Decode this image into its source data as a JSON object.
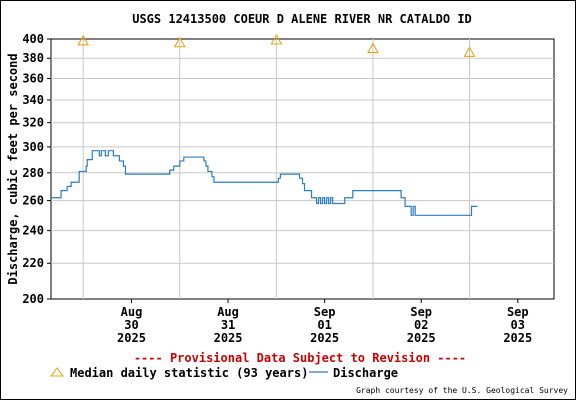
{
  "chart_data": {
    "type": "line",
    "title": "USGS 12413500 COEUR D ALENE RIVER NR CATALDO ID",
    "ylabel": "Discharge, cubic feet per second",
    "xlabel": "",
    "y_scale": "log",
    "ylim": [
      200,
      400
    ],
    "grid": true,
    "y_ticks": [
      200,
      220,
      240,
      260,
      280,
      300,
      320,
      340,
      360,
      380,
      400
    ],
    "x_ticks": [
      {
        "month": "Aug",
        "day": "30",
        "year": "2025"
      },
      {
        "month": "Aug",
        "day": "31",
        "year": "2025"
      },
      {
        "month": "Sep",
        "day": "01",
        "year": "2025"
      },
      {
        "month": "Sep",
        "day": "02",
        "year": "2025"
      },
      {
        "month": "Sep",
        "day": "03",
        "year": "2025"
      }
    ],
    "xlim": [
      "2025-08-29 16:00",
      "2025-09-03 21:00"
    ],
    "series": [
      {
        "name": "Discharge",
        "color": "#2b7dbf",
        "style": "line",
        "points": [
          [
            "2025-08-29 16:00",
            262
          ],
          [
            "2025-08-29 17:45",
            262
          ],
          [
            "2025-08-29 18:30",
            267
          ],
          [
            "2025-08-29 20:00",
            270
          ],
          [
            "2025-08-29 21:00",
            273
          ],
          [
            "2025-08-29 23:00",
            281
          ],
          [
            "2025-08-30 00:45",
            285
          ],
          [
            "2025-08-30 01:00",
            290
          ],
          [
            "2025-08-30 02:15",
            297
          ],
          [
            "2025-08-30 03:30",
            297
          ],
          [
            "2025-08-30 04:00",
            293
          ],
          [
            "2025-08-30 04:30",
            297
          ],
          [
            "2025-08-30 05:30",
            293
          ],
          [
            "2025-08-30 06:15",
            297
          ],
          [
            "2025-08-30 07:00",
            297
          ],
          [
            "2025-08-30 07:30",
            293
          ],
          [
            "2025-08-30 08:15",
            293
          ],
          [
            "2025-08-30 09:00",
            289
          ],
          [
            "2025-08-30 10:00",
            285
          ],
          [
            "2025-08-30 10:30",
            279
          ],
          [
            "2025-08-30 12:00",
            279
          ],
          [
            "2025-08-30 16:00",
            279
          ],
          [
            "2025-08-30 21:00",
            279
          ],
          [
            "2025-08-30 21:30",
            282
          ],
          [
            "2025-08-30 22:30",
            285
          ],
          [
            "2025-08-31 00:00",
            289
          ],
          [
            "2025-08-31 01:00",
            292
          ],
          [
            "2025-08-31 05:00",
            292
          ],
          [
            "2025-08-31 06:00",
            289
          ],
          [
            "2025-08-31 06:30",
            285
          ],
          [
            "2025-08-31 07:00",
            281
          ],
          [
            "2025-08-31 08:00",
            277
          ],
          [
            "2025-08-31 08:30",
            273
          ],
          [
            "2025-08-31 13:00",
            273
          ],
          [
            "2025-08-31 18:00",
            273
          ],
          [
            "2025-09-01 00:00",
            273
          ],
          [
            "2025-09-01 00:30",
            276
          ],
          [
            "2025-09-01 01:00",
            279
          ],
          [
            "2025-09-01 05:00",
            279
          ],
          [
            "2025-09-01 05:45",
            276
          ],
          [
            "2025-09-01 06:30",
            272
          ],
          [
            "2025-09-01 07:00",
            267
          ],
          [
            "2025-09-01 08:45",
            262
          ],
          [
            "2025-09-01 09:30",
            262
          ],
          [
            "2025-09-01 10:00",
            258
          ],
          [
            "2025-09-01 10:30",
            262
          ],
          [
            "2025-09-01 11:00",
            258
          ],
          [
            "2025-09-01 11:30",
            262
          ],
          [
            "2025-09-01 12:00",
            258
          ],
          [
            "2025-09-01 12:30",
            262
          ],
          [
            "2025-09-01 13:00",
            258
          ],
          [
            "2025-09-01 13:30",
            262
          ],
          [
            "2025-09-01 14:00",
            258
          ],
          [
            "2025-09-01 15:00",
            258
          ],
          [
            "2025-09-01 16:00",
            258
          ],
          [
            "2025-09-01 17:00",
            262
          ],
          [
            "2025-09-01 18:00",
            262
          ],
          [
            "2025-09-01 19:00",
            267
          ],
          [
            "2025-09-01 20:00",
            267
          ],
          [
            "2025-09-02 06:00",
            267
          ],
          [
            "2025-09-02 07:00",
            262
          ],
          [
            "2025-09-02 08:00",
            256
          ],
          [
            "2025-09-02 09:00",
            256
          ],
          [
            "2025-09-02 09:30",
            250
          ],
          [
            "2025-09-02 10:00",
            256
          ],
          [
            "2025-09-02 10:30",
            250
          ],
          [
            "2025-09-02 12:00",
            250
          ],
          [
            "2025-09-02 18:00",
            250
          ],
          [
            "2025-09-03 00:00",
            250
          ],
          [
            "2025-09-03 00:30",
            256
          ],
          [
            "2025-09-03 02:00",
            256
          ]
        ]
      },
      {
        "name": "Median daily statistic (93 years)",
        "color": "#e8a000",
        "style": "marker-triangle",
        "points": [
          [
            "2025-08-30 00:00",
            398
          ],
          [
            "2025-08-31 00:00",
            396
          ],
          [
            "2025-09-01 00:00",
            399
          ],
          [
            "2025-09-02 00:00",
            390
          ],
          [
            "2025-09-03 00:00",
            386
          ]
        ]
      }
    ],
    "legend": {
      "position": "bottom",
      "median_label": "Median daily statistic (93 years)",
      "discharge_label": "Discharge"
    },
    "notice": "---- Provisional Data Subject to Revision ----",
    "notice_color": "#cc0000",
    "credit": "Graph courtesy of the U.S. Geological Survey"
  }
}
